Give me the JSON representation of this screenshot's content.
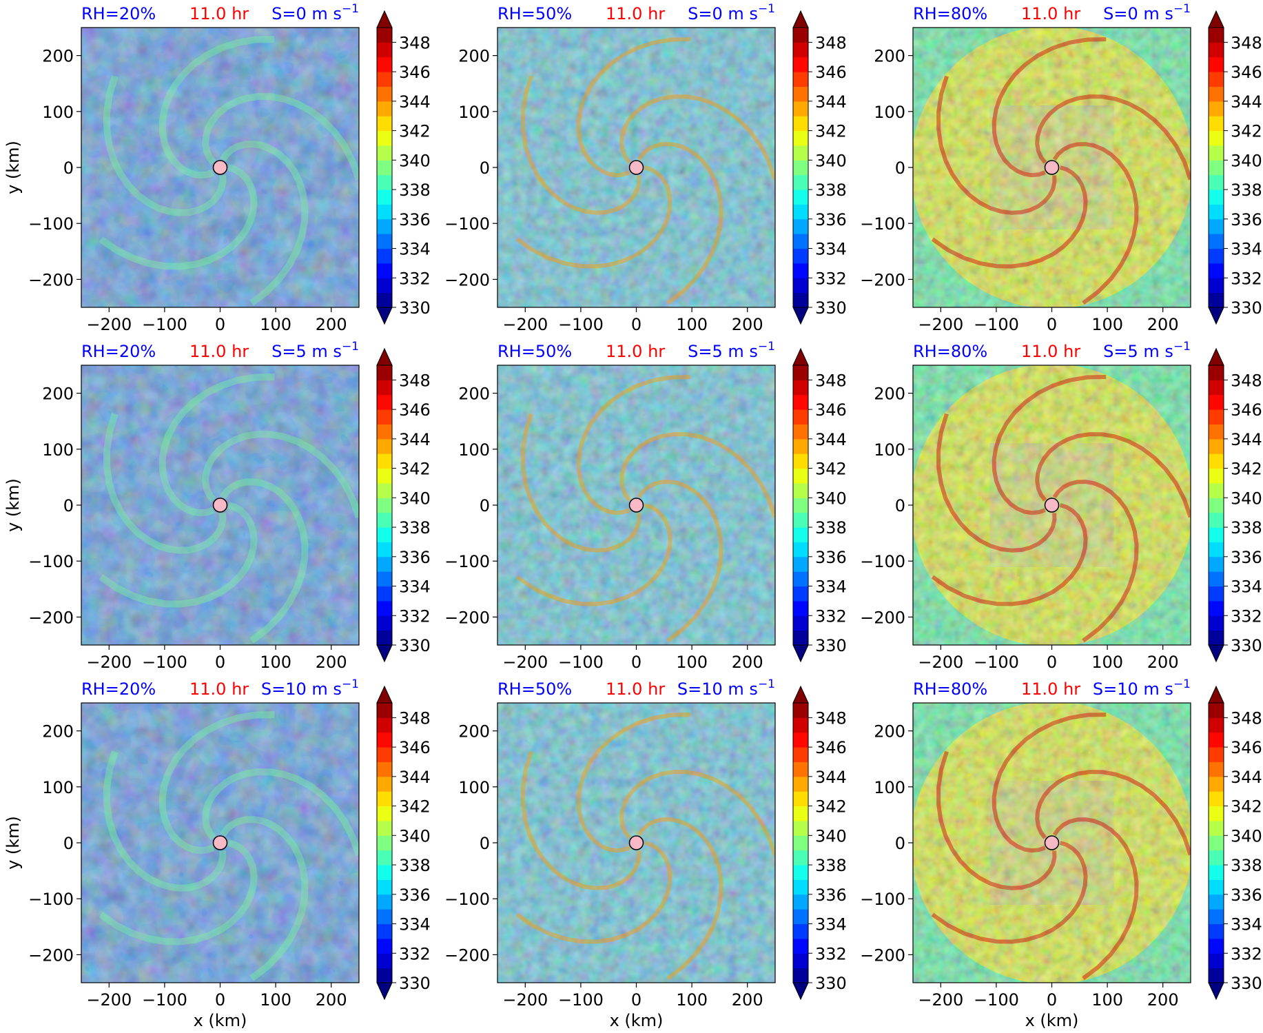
{
  "figure": {
    "time_label": "11.0 hr",
    "shear_unit_prefix": "m s",
    "shear_unit_exp": "−1",
    "xlabel": "x (km)",
    "ylabel": "y (km)",
    "colors": {
      "rh_text": "#0000ff",
      "time_text": "#ff0000",
      "shear_text": "#0000ff",
      "center_marker": "#f7b9c6"
    }
  },
  "chart_data": {
    "type": "heatmap",
    "variable_colorbar": {
      "ticks": [
        "348",
        "346",
        "344",
        "342",
        "340",
        "338",
        "336",
        "334",
        "332",
        "330"
      ],
      "range": [
        330,
        349
      ],
      "levels": [
        330,
        331,
        332,
        333,
        334,
        335,
        336,
        337,
        338,
        339,
        340,
        341,
        342,
        343,
        344,
        345,
        346,
        347,
        348,
        349
      ],
      "extend": "both",
      "colormap": "jet"
    },
    "x_ticks": [
      "−200",
      "−100",
      "0",
      "100",
      "200"
    ],
    "y_ticks": [
      "200",
      "100",
      "0",
      "−100",
      "−200"
    ],
    "xlim": [
      -250,
      250
    ],
    "ylim": [
      -250,
      250
    ],
    "panels": [
      {
        "rh": "RH=20%",
        "shear": "S=0"
      },
      {
        "rh": "RH=50%",
        "shear": "S=0"
      },
      {
        "rh": "RH=80%",
        "shear": "S=0"
      },
      {
        "rh": "RH=20%",
        "shear": "S=5"
      },
      {
        "rh": "RH=50%",
        "shear": "S=5"
      },
      {
        "rh": "RH=80%",
        "shear": "S=5"
      },
      {
        "rh": "RH=20%",
        "shear": "S=10"
      },
      {
        "rh": "RH=50%",
        "shear": "S=10"
      },
      {
        "rh": "RH=80%",
        "shear": "S=10"
      }
    ]
  }
}
